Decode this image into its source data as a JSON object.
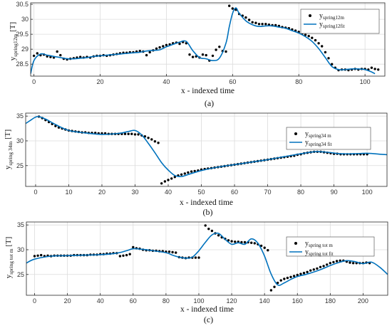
{
  "colors": {
    "dot": "#000000",
    "fit": "#0072BD",
    "grid": "#dcdcdc",
    "axis": "#262626"
  },
  "chart_data": [
    {
      "type": "scatter+line",
      "caption": "(a)",
      "xlabel": "x - indexed time",
      "ylabel_main": "y",
      "ylabel_sub": "spring12m",
      "ylabel_unit": " [T]",
      "xlim": [
        -1,
        106
      ],
      "ylim": [
        28.1,
        30.55
      ],
      "xticks": [
        0,
        20,
        40,
        60,
        80,
        100
      ],
      "yticks": [
        28.5,
        29,
        29.5,
        30,
        30.5
      ],
      "grid": true,
      "legend_position": "top-right",
      "legend": [
        {
          "kind": "marker",
          "main": "y",
          "sub": "spring12m"
        },
        {
          "kind": "line",
          "main": "y",
          "sub": "spring12fit"
        }
      ],
      "series": [
        {
          "kind": "points",
          "x": [
            0,
            1,
            2,
            3,
            4,
            5,
            6,
            7,
            8,
            9,
            10,
            11,
            12,
            13,
            14,
            15,
            16,
            17,
            18,
            19,
            20,
            21,
            22,
            23,
            24,
            25,
            26,
            27,
            28,
            29,
            30,
            31,
            32,
            33,
            34,
            35,
            36,
            37,
            38,
            39,
            40,
            41,
            42,
            43,
            44,
            45,
            46,
            47,
            48,
            49,
            50,
            51,
            52,
            53,
            54,
            55,
            56,
            57,
            58,
            59,
            60,
            61,
            62,
            63,
            64,
            65,
            66,
            67,
            68,
            69,
            70,
            71,
            72,
            73,
            74,
            75,
            76,
            77,
            78,
            79,
            80,
            81,
            82,
            83,
            84,
            85,
            86,
            87,
            88,
            89,
            90,
            91,
            92,
            93,
            94,
            95,
            96,
            97,
            98,
            99,
            100,
            101,
            102,
            103,
            104
          ],
          "y": [
            28.78,
            28.86,
            28.8,
            28.82,
            28.76,
            28.74,
            28.72,
            28.92,
            28.8,
            28.68,
            28.66,
            28.68,
            28.7,
            28.72,
            28.74,
            28.72,
            28.74,
            28.72,
            28.76,
            28.78,
            28.78,
            28.8,
            28.78,
            28.8,
            28.82,
            28.84,
            28.86,
            28.88,
            28.88,
            28.9,
            28.9,
            28.92,
            28.94,
            28.92,
            28.8,
            28.9,
            28.96,
            29.02,
            29.06,
            29.1,
            29.14,
            29.16,
            29.2,
            29.22,
            29.18,
            29.24,
            29.2,
            28.82,
            28.74,
            28.76,
            28.72,
            28.82,
            28.8,
            28.62,
            28.78,
            28.98,
            29.08,
            28.94,
            28.92,
            30.45,
            30.36,
            30.32,
            30.18,
            30.12,
            30.06,
            29.98,
            29.9,
            29.88,
            29.84,
            29.84,
            29.84,
            29.82,
            29.8,
            29.8,
            29.78,
            29.74,
            29.72,
            29.7,
            29.66,
            29.62,
            29.58,
            29.52,
            29.48,
            29.44,
            29.38,
            29.3,
            29.2,
            29.1,
            28.9,
            28.7,
            28.5,
            28.38,
            28.3,
            28.32,
            28.32,
            28.3,
            28.32,
            28.34,
            28.32,
            28.34,
            28.34,
            28.32,
            28.38,
            28.34,
            28.32
          ]
        },
        {
          "kind": "curve",
          "x": [
            -1,
            0,
            2,
            4,
            6,
            8,
            10,
            12,
            14,
            16,
            18,
            20,
            22,
            24,
            26,
            28,
            30,
            32,
            34,
            36,
            38,
            40,
            42,
            44,
            46,
            48,
            50,
            52,
            54,
            56,
            58,
            59,
            60,
            61,
            62,
            64,
            66,
            68,
            70,
            72,
            74,
            76,
            78,
            80,
            82,
            84,
            86,
            88,
            90,
            92,
            94,
            96,
            98,
            100,
            102,
            103
          ],
          "y": [
            28.18,
            28.62,
            28.84,
            28.8,
            28.76,
            28.72,
            28.68,
            28.68,
            28.7,
            28.72,
            28.76,
            28.78,
            28.8,
            28.82,
            28.84,
            28.86,
            28.88,
            28.9,
            28.94,
            28.96,
            28.98,
            29.08,
            29.16,
            29.24,
            29.26,
            28.95,
            28.72,
            28.68,
            28.62,
            28.7,
            29.2,
            29.75,
            30.2,
            30.38,
            30.2,
            29.95,
            29.82,
            29.76,
            29.78,
            29.78,
            29.74,
            29.7,
            29.62,
            29.54,
            29.42,
            29.26,
            29.02,
            28.72,
            28.42,
            28.32,
            28.32,
            28.34,
            28.34,
            28.32,
            28.24,
            28.18
          ]
        }
      ]
    },
    {
      "type": "scatter+line",
      "caption": "(b)",
      "xlabel": "x - indexed time",
      "ylabel_main": "y",
      "ylabel_sub": "spring 34m",
      "ylabel_unit": " [T]",
      "xlim": [
        -3,
        106
      ],
      "ylim": [
        20.8,
        35.6
      ],
      "xticks": [
        0,
        10,
        20,
        30,
        40,
        50,
        60,
        70,
        80,
        90,
        100
      ],
      "yticks": [
        25,
        30,
        35
      ],
      "grid": true,
      "legend_position": "top-right",
      "legend": [
        {
          "kind": "marker",
          "main": "y",
          "sub": "spring34 m"
        },
        {
          "kind": "line",
          "main": "y",
          "sub": "spring34 fit"
        }
      ],
      "series": [
        {
          "kind": "points",
          "x": [
            1,
            2,
            3,
            4,
            5,
            6,
            7,
            8,
            9,
            10,
            11,
            12,
            13,
            14,
            15,
            16,
            17,
            18,
            19,
            20,
            21,
            22,
            23,
            24,
            25,
            26,
            27,
            28,
            29,
            30,
            31,
            32,
            33,
            34,
            35,
            36,
            37,
            38,
            39,
            40,
            41,
            42,
            43,
            44,
            45,
            46,
            47,
            48,
            49,
            50,
            51,
            52,
            53,
            54,
            55,
            56,
            57,
            58,
            59,
            60,
            61,
            62,
            63,
            64,
            65,
            66,
            67,
            68,
            69,
            70,
            71,
            72,
            73,
            74,
            75,
            76,
            77,
            78,
            79,
            80,
            81,
            82,
            83,
            84,
            85,
            86,
            87,
            88,
            89,
            90,
            91,
            92,
            93,
            94,
            95,
            96,
            97,
            98,
            99,
            100
          ],
          "y": [
            34.9,
            34.6,
            34.2,
            33.8,
            33.4,
            33.0,
            32.7,
            32.5,
            32.3,
            32.1,
            32.0,
            31.9,
            31.8,
            31.7,
            31.7,
            31.6,
            31.6,
            31.6,
            31.5,
            31.5,
            31.5,
            31.4,
            31.4,
            31.4,
            31.4,
            31.4,
            31.4,
            31.4,
            31.4,
            31.3,
            31.3,
            31.1,
            30.9,
            30.6,
            30.3,
            29.9,
            29.6,
            21.4,
            21.8,
            22.1,
            22.4,
            22.7,
            23.0,
            23.2,
            23.4,
            23.6,
            23.8,
            23.9,
            24.0,
            24.2,
            24.3,
            24.4,
            24.5,
            24.6,
            24.7,
            24.8,
            24.9,
            25.0,
            25.1,
            25.2,
            25.3,
            25.4,
            25.5,
            25.6,
            25.7,
            25.8,
            25.9,
            26.0,
            26.1,
            26.2,
            26.3,
            26.4,
            26.5,
            26.6,
            26.7,
            26.8,
            26.9,
            27.0,
            27.2,
            27.3,
            27.5,
            27.6,
            27.7,
            27.8,
            27.8,
            27.8,
            27.7,
            27.6,
            27.5,
            27.4,
            27.4,
            27.3,
            27.3,
            27.3,
            27.3,
            27.3,
            27.3,
            27.3,
            27.3,
            27.3
          ]
        },
        {
          "kind": "curve",
          "x": [
            -3,
            -1,
            0,
            1,
            3,
            6,
            10,
            15,
            20,
            25,
            28,
            30,
            32,
            34,
            36,
            38,
            40,
            42,
            44,
            46,
            50,
            55,
            60,
            65,
            70,
            75,
            80,
            84,
            86,
            88,
            92,
            96,
            100,
            104,
            106
          ],
          "y": [
            33.5,
            34.4,
            34.8,
            34.9,
            34.4,
            33.3,
            32.1,
            31.6,
            31.3,
            31.5,
            31.9,
            32.1,
            31.2,
            29.5,
            27.6,
            25.6,
            24.1,
            23.0,
            22.8,
            23.2,
            24.0,
            24.7,
            25.2,
            25.7,
            26.2,
            26.8,
            27.4,
            27.8,
            27.8,
            27.7,
            27.4,
            27.4,
            27.5,
            27.3,
            27.2
          ]
        }
      ]
    },
    {
      "type": "scatter+line",
      "caption": "(c)",
      "xlabel": "x - indexed time",
      "ylabel_main": "y",
      "ylabel_sub": "spring tot m",
      "ylabel_unit": " [T]",
      "xlim": [
        -5,
        215
      ],
      "ylim": [
        20.8,
        35.6
      ],
      "xticks": [
        0,
        20,
        40,
        60,
        80,
        100,
        120,
        140,
        160,
        180,
        200
      ],
      "yticks": [
        25,
        30,
        35
      ],
      "grid": true,
      "legend_position": "top-right",
      "legend": [
        {
          "kind": "marker",
          "main": "y",
          "sub": "spring tot m"
        },
        {
          "kind": "line",
          "main": "y",
          "sub": "spring tot fit"
        }
      ],
      "series": [
        {
          "kind": "points",
          "x": [
            0,
            2,
            4,
            6,
            8,
            10,
            12,
            14,
            16,
            18,
            20,
            22,
            24,
            26,
            28,
            30,
            32,
            34,
            36,
            38,
            40,
            42,
            44,
            46,
            48,
            50,
            52,
            54,
            56,
            58,
            60,
            62,
            64,
            66,
            68,
            70,
            72,
            74,
            76,
            78,
            80,
            82,
            84,
            86,
            88,
            90,
            92,
            94,
            96,
            98,
            100,
            104,
            106,
            108,
            110,
            112,
            114,
            116,
            118,
            120,
            122,
            124,
            126,
            128,
            130,
            132,
            134,
            136,
            138,
            140,
            142,
            144,
            146,
            148,
            150,
            152,
            154,
            156,
            158,
            160,
            162,
            164,
            166,
            168,
            170,
            172,
            174,
            176,
            178,
            180,
            182,
            184,
            186,
            188,
            190,
            192,
            194,
            196,
            198,
            200,
            202,
            204
          ],
          "y": [
            28.7,
            28.8,
            28.9,
            28.7,
            28.8,
            28.7,
            28.8,
            28.8,
            28.8,
            28.8,
            28.8,
            28.8,
            28.9,
            28.9,
            28.9,
            28.9,
            28.9,
            29.0,
            29.0,
            29.0,
            29.1,
            29.1,
            29.2,
            29.2,
            29.3,
            29.3,
            28.7,
            28.8,
            28.9,
            29.1,
            30.5,
            30.3,
            30.2,
            30.0,
            29.9,
            29.9,
            29.8,
            29.8,
            29.7,
            29.7,
            29.6,
            29.6,
            29.5,
            29.4,
            28.5,
            28.4,
            28.3,
            28.4,
            28.4,
            28.4,
            28.4,
            34.9,
            34.2,
            33.8,
            33.3,
            32.9,
            32.5,
            32.2,
            31.9,
            31.7,
            31.6,
            31.6,
            31.5,
            31.5,
            31.5,
            31.4,
            31.3,
            31.1,
            30.8,
            30.4,
            29.9,
            21.8,
            22.5,
            23.3,
            23.8,
            24.1,
            24.3,
            24.5,
            24.7,
            24.9,
            25.1,
            25.3,
            25.5,
            25.8,
            26.0,
            26.2,
            26.5,
            26.7,
            27.0,
            27.3,
            27.5,
            27.7,
            27.8,
            27.8,
            27.6,
            27.4,
            27.3,
            27.3,
            27.3,
            27.3,
            27.4,
            27.3
          ]
        },
        {
          "kind": "curve",
          "x": [
            -5,
            0,
            10,
            20,
            30,
            40,
            50,
            56,
            60,
            65,
            70,
            80,
            84,
            88,
            92,
            96,
            100,
            104,
            108,
            112,
            116,
            120,
            124,
            128,
            132,
            136,
            140,
            144,
            148,
            152,
            156,
            160,
            165,
            170,
            175,
            180,
            185,
            190,
            195,
            200,
            205,
            210,
            215
          ],
          "y": [
            27.3,
            28.1,
            28.7,
            28.8,
            28.9,
            29.0,
            29.3,
            29.8,
            30.2,
            30.1,
            29.9,
            29.4,
            28.9,
            28.5,
            28.3,
            28.5,
            29.8,
            31.5,
            33.0,
            33.3,
            32.1,
            31.1,
            31.4,
            31.1,
            32.2,
            31.3,
            28.7,
            25.1,
            22.9,
            23.3,
            24.0,
            24.6,
            25.0,
            25.5,
            26.1,
            26.8,
            27.4,
            27.8,
            27.6,
            27.2,
            27.5,
            26.5,
            25.0
          ]
        }
      ]
    }
  ]
}
